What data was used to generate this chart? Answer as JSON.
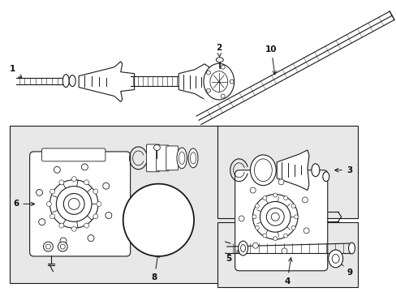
{
  "background_color": "#ffffff",
  "light_gray": "#e8e8e8",
  "line_color": "#1a1a1a",
  "label_color": "#111111",
  "figsize": [
    4.89,
    3.6
  ],
  "dpi": 100
}
